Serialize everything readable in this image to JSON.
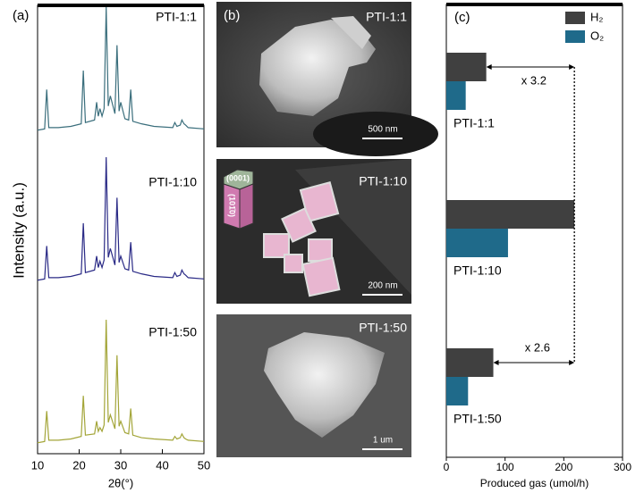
{
  "panel_labels": [
    "(a)",
    "(b)",
    "(c)"
  ],
  "sem_images": [
    {
      "label": "PTI-1:1",
      "scale_bar": "500 nm"
    },
    {
      "label": "PTI-1:10",
      "scale_bar": "200 nm"
    },
    {
      "label": "PTI-1:50",
      "scale_bar": "1 um"
    }
  ],
  "crystal_facets": [
    "(0001)",
    "(101̄0)"
  ],
  "chart_data": [
    {
      "type": "line",
      "xlabel": "2θ(°)",
      "ylabel": "Intensity (a.u.)",
      "x": [
        10,
        11.7,
        12.2,
        12.7,
        15,
        18,
        20.5,
        21,
        21.5,
        23.7,
        24.2,
        24.6,
        25,
        25.5,
        26,
        26.5,
        27,
        27.5,
        28.6,
        29.1,
        29.6,
        30,
        31,
        31.9,
        32.4,
        32.9,
        35,
        38,
        42.5,
        43,
        43.5,
        44.3,
        44.7,
        45.2,
        45.6,
        46.2,
        50
      ],
      "xlim": [
        10,
        50
      ],
      "xticks": [
        10,
        20,
        30,
        40,
        50
      ],
      "ylim": [
        0,
        100
      ],
      "series": [
        {
          "name": "PTI-1:1",
          "color": "#3a6e7c",
          "values": [
            3,
            4,
            35,
            5,
            5,
            6,
            8,
            50,
            9,
            11,
            25,
            14,
            20,
            14,
            20,
            100,
            22,
            30,
            16,
            70,
            18,
            25,
            12,
            11,
            35,
            10,
            8,
            6,
            5,
            9,
            6,
            7,
            11,
            8,
            7,
            5,
            4
          ]
        },
        {
          "name": "PTI-1:10",
          "color": "#2a2a86",
          "values": [
            3,
            4,
            30,
            5,
            5,
            6,
            8,
            48,
            9,
            11,
            22,
            13,
            18,
            13,
            19,
            100,
            21,
            28,
            15,
            68,
            17,
            22,
            12,
            11,
            33,
            10,
            8,
            6,
            5,
            9,
            6,
            7,
            11,
            8,
            7,
            5,
            4
          ]
        },
        {
          "name": "PTI-1:50",
          "color": "#a3a538",
          "values": [
            3,
            4,
            28,
            5,
            5,
            6,
            8,
            40,
            9,
            10,
            20,
            12,
            15,
            12,
            17,
            100,
            19,
            25,
            14,
            72,
            16,
            20,
            11,
            10,
            30,
            9,
            7,
            6,
            5,
            8,
            6,
            7,
            10,
            7,
            6,
            5,
            4
          ]
        }
      ]
    },
    {
      "type": "bar",
      "orientation": "horizontal",
      "xlabel": "Produced gas (umol/h)",
      "categories": [
        "PTI-1:1",
        "PTI-1:10",
        "PTI-1:50"
      ],
      "xlim": [
        0,
        300
      ],
      "xticks": [
        0,
        100,
        200,
        300
      ],
      "legend": "upper right",
      "series": [
        {
          "name": "H₂",
          "color": "#404040",
          "values": [
            68,
            218,
            80
          ]
        },
        {
          "name": "O₂",
          "color": "#1f6a8a",
          "values": [
            33,
            105,
            37
          ]
        }
      ],
      "annotations": [
        "x 3.2",
        "x 2.6"
      ]
    }
  ]
}
